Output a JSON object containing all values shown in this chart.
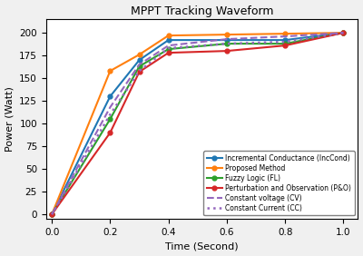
{
  "title": "MPPT Tracking Waveform",
  "xlabel": "Time (Second)",
  "ylabel": "Power (Watt)",
  "xlim": [
    -0.02,
    1.05
  ],
  "ylim": [
    -5,
    215
  ],
  "xticks": [
    0.0,
    0.2,
    0.4,
    0.6,
    0.8,
    1.0
  ],
  "yticks": [
    0,
    25,
    50,
    75,
    100,
    125,
    150,
    175,
    200
  ],
  "IncCond": {
    "x": [
      0.0,
      0.2,
      0.3,
      0.4,
      0.6,
      0.8,
      1.0
    ],
    "y": [
      0,
      130,
      170,
      192,
      192,
      192,
      200
    ],
    "color": "#1f77b4",
    "marker": "o",
    "markersize": 3.5,
    "label": "Incremental Conductance (IncCond)"
  },
  "Proposed": {
    "x": [
      0.0,
      0.2,
      0.3,
      0.4,
      0.6,
      0.8,
      1.0
    ],
    "y": [
      0,
      158,
      176,
      197,
      198,
      199,
      200
    ],
    "color": "#ff7f0e",
    "marker": "o",
    "markersize": 3.5,
    "label": "Proposed Method"
  },
  "FuzzyLogic": {
    "x": [
      0.0,
      0.2,
      0.3,
      0.4,
      0.6,
      0.8,
      1.0
    ],
    "y": [
      0,
      105,
      163,
      182,
      188,
      188,
      200
    ],
    "color": "#2ca02c",
    "marker": "o",
    "markersize": 3.5,
    "label": "Fuzzy Logic (FL)"
  },
  "PO": {
    "x": [
      0.0,
      0.2,
      0.3,
      0.4,
      0.6,
      0.8,
      1.0
    ],
    "y": [
      0,
      90,
      157,
      178,
      180,
      186,
      200
    ],
    "color": "#d62728",
    "marker": "o",
    "markersize": 3.5,
    "label": "Perturbation and Observation (P&O)"
  },
  "CV": {
    "x": [
      0.0,
      0.2,
      0.3,
      0.4,
      0.6,
      0.8,
      1.0
    ],
    "y": [
      0,
      118,
      165,
      186,
      193,
      196,
      200
    ],
    "color": "#9467bd",
    "linestyle": "--",
    "linewidth": 1.5,
    "label": "Constant voltage (CV)"
  },
  "CC": {
    "x": [
      0.0,
      0.2,
      0.3,
      0.4,
      0.6,
      0.8,
      1.0
    ],
    "y": [
      0,
      110,
      158,
      183,
      188,
      190,
      200
    ],
    "color": "#9467bd",
    "linestyle": ":",
    "linewidth": 1.8,
    "label": "Constant Current (CC)"
  }
}
